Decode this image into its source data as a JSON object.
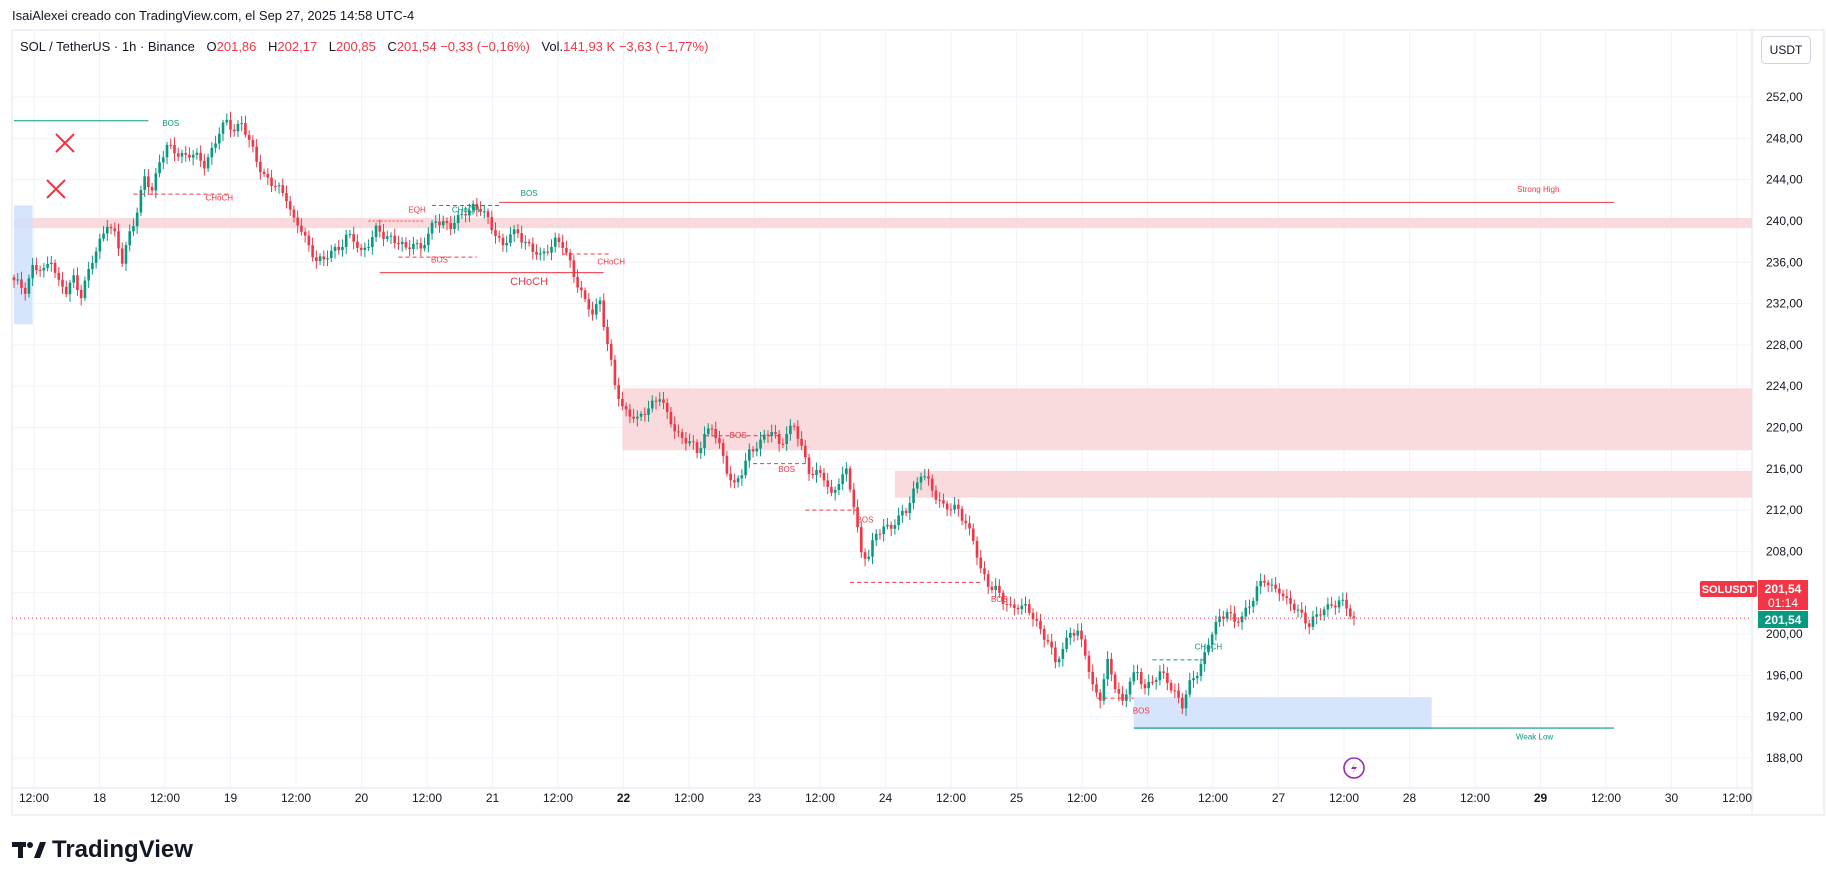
{
  "header": {
    "attribution": "IsaiAlexei creado con TradingView.com, el Sep 27, 2025 14:58 UTC-4"
  },
  "legend": {
    "symbol": "SOL / TetherUS · 1h · Binance",
    "open_label": "O",
    "open": "201,86",
    "high_label": "H",
    "high": "202,17",
    "low_label": "L",
    "low": "200,85",
    "close_label": "C",
    "close": "201,54",
    "change": "−0,33 (−0,16%)",
    "vol_label": "Vol.",
    "volume": "141,93 K",
    "vol_change": "−3,63 (−1,77%)"
  },
  "currency_button": "USDT",
  "price_tags": {
    "ticker": "SOLUSDT",
    "price": "201,54",
    "countdown": "01:14",
    "price2": "201,54"
  },
  "brand": "TradingView",
  "colors": {
    "up": "#089981",
    "down": "#f23645",
    "supply_zone": "#f8d3d7",
    "demand_zone": "#cfe0fb",
    "grid": "#f0f3fa"
  },
  "chart_data": {
    "type": "candlestick",
    "x_ticks": [
      "12:00",
      "18",
      "12:00",
      "19",
      "12:00",
      "20",
      "12:00",
      "21",
      "12:00",
      "22",
      "12:00",
      "23",
      "12:00",
      "24",
      "12:00",
      "25",
      "12:00",
      "26",
      "12:00",
      "27",
      "12:00",
      "28",
      "12:00",
      "29",
      "12:00",
      "30",
      "12:00"
    ],
    "y_ticks": [
      "188,00",
      "192,00",
      "196,00",
      "200,00",
      "204,00",
      "208,00",
      "212,00",
      "216,00",
      "220,00",
      "224,00",
      "228,00",
      "232,00",
      "236,00",
      "240,00",
      "244,00",
      "248,00",
      "252,00"
    ],
    "ylim": [
      185,
      256
    ],
    "hline_current": 201.54,
    "ohlc_path": [
      [
        0,
        234.0
      ],
      [
        3,
        233.5
      ],
      [
        5,
        235.5
      ],
      [
        8,
        235.0
      ],
      [
        10,
        236.5
      ],
      [
        12,
        234.0
      ],
      [
        14,
        233.0
      ],
      [
        16,
        234.5
      ],
      [
        18,
        233.0
      ],
      [
        21,
        236.0
      ],
      [
        23,
        238.0
      ],
      [
        25,
        240.0
      ],
      [
        27,
        238.5
      ],
      [
        29,
        236.0
      ],
      [
        31,
        239.0
      ],
      [
        33,
        241.0
      ],
      [
        35,
        244.0
      ],
      [
        37,
        243.0
      ],
      [
        39,
        246.0
      ],
      [
        41,
        247.0
      ],
      [
        44,
        246.5
      ],
      [
        47,
        246.5
      ],
      [
        49,
        246.0
      ],
      [
        51,
        245.5
      ],
      [
        53,
        247.0
      ],
      [
        55,
        248.5
      ],
      [
        57,
        249.5
      ],
      [
        59,
        249.0
      ],
      [
        61,
        249.5
      ],
      [
        63,
        247.5
      ],
      [
        65,
        246.0
      ],
      [
        67,
        244.5
      ],
      [
        69,
        243.5
      ],
      [
        71,
        243.0
      ],
      [
        73,
        242.5
      ],
      [
        75,
        240.0
      ],
      [
        77,
        239.0
      ],
      [
        79,
        237.5
      ],
      [
        81,
        236.5
      ],
      [
        83,
        236.0
      ],
      [
        85,
        237.0
      ],
      [
        87,
        237.5
      ],
      [
        89,
        238.5
      ],
      [
        91,
        238.0
      ],
      [
        93,
        237.0
      ],
      [
        95,
        238.0
      ],
      [
        97,
        239.0
      ],
      [
        99,
        238.5
      ],
      [
        101,
        238.5
      ],
      [
        103,
        238.0
      ],
      [
        105,
        237.0
      ],
      [
        107,
        238.0
      ],
      [
        109,
        237.5
      ],
      [
        111,
        238.5
      ],
      [
        113,
        240.0
      ],
      [
        115,
        240.0
      ],
      [
        117,
        239.5
      ],
      [
        119,
        240.0
      ],
      [
        121,
        241.0
      ],
      [
        123,
        241.5
      ],
      [
        125,
        241.0
      ],
      [
        127,
        240.0
      ],
      [
        129,
        239.0
      ],
      [
        131,
        237.5
      ],
      [
        133,
        238.5
      ],
      [
        135,
        239.0
      ],
      [
        137,
        238.0
      ],
      [
        139,
        237.0
      ],
      [
        141,
        236.5
      ],
      [
        143,
        237.5
      ],
      [
        145,
        238.0
      ],
      [
        147,
        237.5
      ],
      [
        149,
        236.0
      ],
      [
        151,
        234.0
      ],
      [
        153,
        232.0
      ],
      [
        155,
        231.0
      ],
      [
        157,
        232.5
      ],
      [
        159,
        228.0
      ],
      [
        161,
        224.0
      ],
      [
        163,
        222.0
      ],
      [
        165,
        221.5
      ],
      [
        167,
        220.5
      ],
      [
        169,
        221.5
      ],
      [
        171,
        222.5
      ],
      [
        173,
        223.0
      ],
      [
        175,
        221.0
      ],
      [
        177,
        220.0
      ],
      [
        179,
        219.0
      ],
      [
        181,
        218.5
      ],
      [
        183,
        217.5
      ],
      [
        185,
        219.5
      ],
      [
        187,
        220.0
      ],
      [
        189,
        218.0
      ],
      [
        191,
        216.0
      ],
      [
        193,
        214.5
      ],
      [
        195,
        215.5
      ],
      [
        197,
        217.5
      ],
      [
        199,
        218.5
      ],
      [
        201,
        219.0
      ],
      [
        203,
        219.5
      ],
      [
        205,
        218.5
      ],
      [
        207,
        219.5
      ],
      [
        209,
        220.0
      ],
      [
        211,
        218.0
      ],
      [
        213,
        216.0
      ],
      [
        215,
        215.5
      ],
      [
        217,
        215.0
      ],
      [
        219,
        213.5
      ],
      [
        221,
        215.0
      ],
      [
        223,
        215.5
      ],
      [
        225,
        212.5
      ],
      [
        227,
        208.0
      ],
      [
        229,
        207.5
      ],
      [
        231,
        209.5
      ],
      [
        233,
        210.5
      ],
      [
        235,
        210.5
      ],
      [
        237,
        211.0
      ],
      [
        239,
        212.0
      ],
      [
        241,
        214.0
      ],
      [
        243,
        215.5
      ],
      [
        245,
        214.5
      ],
      [
        247,
        213.5
      ],
      [
        249,
        212.5
      ],
      [
        251,
        212.0
      ],
      [
        253,
        212.0
      ],
      [
        255,
        211.0
      ],
      [
        257,
        209.0
      ],
      [
        259,
        206.0
      ],
      [
        261,
        205.0
      ],
      [
        263,
        204.5
      ],
      [
        265,
        203.0
      ],
      [
        267,
        202.5
      ],
      [
        269,
        203.0
      ],
      [
        271,
        202.5
      ],
      [
        273,
        201.5
      ],
      [
        275,
        200.5
      ],
      [
        277,
        199.5
      ],
      [
        279,
        197.0
      ],
      [
        281,
        198.5
      ],
      [
        283,
        200.5
      ],
      [
        285,
        200.0
      ],
      [
        287,
        198.0
      ],
      [
        289,
        195.0
      ],
      [
        291,
        194.0
      ],
      [
        293,
        197.0
      ],
      [
        295,
        195.0
      ],
      [
        297,
        193.5
      ],
      [
        299,
        195.5
      ],
      [
        301,
        196.0
      ],
      [
        303,
        195.0
      ],
      [
        305,
        195.5
      ],
      [
        307,
        196.0
      ],
      [
        309,
        195.5
      ],
      [
        311,
        194.5
      ],
      [
        313,
        193.0
      ],
      [
        315,
        195.0
      ],
      [
        317,
        196.5
      ],
      [
        319,
        198.0
      ],
      [
        321,
        200.0
      ],
      [
        323,
        201.5
      ],
      [
        325,
        202.5
      ],
      [
        327,
        201.0
      ],
      [
        329,
        201.5
      ],
      [
        331,
        203.0
      ],
      [
        333,
        204.5
      ],
      [
        335,
        205.0
      ],
      [
        337,
        204.5
      ],
      [
        339,
        204.5
      ],
      [
        341,
        203.0
      ],
      [
        343,
        202.5
      ],
      [
        345,
        202.0
      ],
      [
        347,
        201.0
      ],
      [
        349,
        201.5
      ],
      [
        351,
        202.5
      ],
      [
        353,
        203.0
      ],
      [
        355,
        203.0
      ],
      [
        357,
        202.5
      ],
      [
        359,
        201.54
      ]
    ],
    "zones": [
      {
        "type": "supply",
        "from_x": 0,
        "to_x": 999,
        "y1": 239.3,
        "y2": 240.3
      },
      {
        "type": "supply",
        "from_x": 163,
        "to_x": 999,
        "y1": 217.8,
        "y2": 223.8
      },
      {
        "type": "supply",
        "from_x": 236,
        "to_x": 999,
        "y1": 213.2,
        "y2": 215.8
      },
      {
        "type": "demand",
        "from_x": 300,
        "to_x": 380,
        "y1": 190.8,
        "y2": 193.9
      },
      {
        "type": "demand",
        "from_x": 0,
        "to_x": 5,
        "y1": 230.0,
        "y2": 241.5
      }
    ],
    "annotations": [
      {
        "text": "BOS",
        "x": 42,
        "y": 249.2,
        "color": "up"
      },
      {
        "text": "CHoCH",
        "x": 55,
        "y": 242.0,
        "color": "down"
      },
      {
        "text": "EQH",
        "x": 108,
        "y": 240.8,
        "color": "down"
      },
      {
        "text": "CHoCH",
        "x": 121,
        "y": 240.8,
        "color": "up"
      },
      {
        "text": "BOS",
        "x": 138,
        "y": 242.4,
        "color": "up"
      },
      {
        "text": "BOS",
        "x": 114,
        "y": 236.0,
        "color": "down"
      },
      {
        "text": "CHoCH",
        "x": 138,
        "y": 233.8,
        "color": "down"
      },
      {
        "text": "CHoCH",
        "x": 160,
        "y": 235.8,
        "color": "down"
      },
      {
        "text": "BOS",
        "x": 194,
        "y": 219.0,
        "color": "down"
      },
      {
        "text": "BOS",
        "x": 207,
        "y": 215.7,
        "color": "down"
      },
      {
        "text": "BOS",
        "x": 228,
        "y": 210.8,
        "color": "down"
      },
      {
        "text": "BOS",
        "x": 264,
        "y": 203.1,
        "color": "down"
      },
      {
        "text": "CHoCH",
        "x": 320,
        "y": 198.5,
        "color": "up"
      },
      {
        "text": "BOS",
        "x": 302,
        "y": 192.3,
        "color": "down"
      },
      {
        "text": "Strong High",
        "x": 398,
        "y": 242.8,
        "color": "down"
      },
      {
        "text": "Weak Low",
        "x": 397,
        "y": 189.8,
        "color": "up"
      }
    ]
  }
}
